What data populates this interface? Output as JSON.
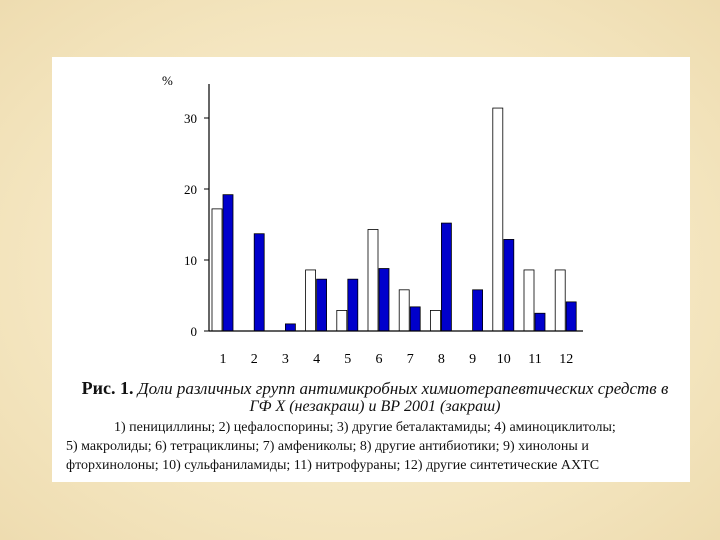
{
  "chart_data": {
    "type": "bar",
    "ylabel": "%",
    "ylim": [
      0,
      35
    ],
    "yticks": [
      0,
      10,
      20,
      30
    ],
    "categories": [
      "1",
      "2",
      "3",
      "4",
      "5",
      "6",
      "7",
      "8",
      "9",
      "10",
      "11",
      "12"
    ],
    "series": [
      {
        "name": "ГФ X (незакраш)",
        "color": "#ffffff",
        "values": [
          17.2,
          0,
          0,
          8.6,
          2.9,
          14.3,
          5.8,
          2.9,
          0,
          31.4,
          8.6,
          8.6
        ]
      },
      {
        "name": "ВР 2001 (закраш)",
        "color": "#0000cc",
        "values": [
          19.2,
          13.7,
          1.0,
          7.3,
          7.3,
          8.8,
          3.4,
          15.2,
          5.8,
          12.9,
          2.5,
          4.1
        ]
      }
    ]
  },
  "caption": {
    "fig_label": "Рис. 1.",
    "title_part1": "Доли различных групп антимикробных химиотерапевтических средств в",
    "title_part2": "ГФ X (незакраш) и ВР 2001 (закраш)",
    "legend_line1": "1) пенициллины; 2) цефалоспорины; 3) другие беталактамиды; 4) аминоциклитолы;",
    "legend_line2": "5) макролиды; 6) тетрациклины; 7) амфениколы; 8) другие антибиотики; 9) хинолоны и",
    "legend_line3": "фторхинолоны; 10) сульфаниламиды; 11) нитрофураны; 12) другие синтетические АХТС"
  }
}
